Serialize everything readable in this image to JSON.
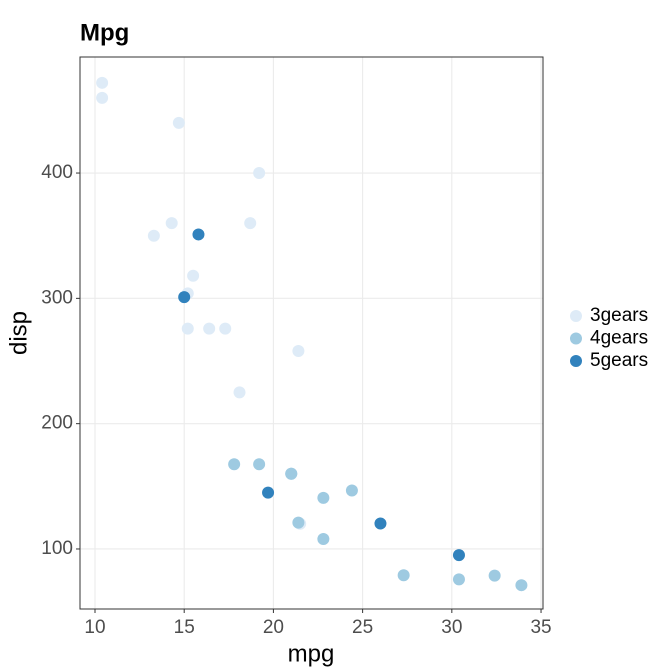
{
  "chart_data": {
    "type": "scatter",
    "title": "Mpg",
    "x_label": "mpg",
    "y_label": "disp",
    "series": [
      {
        "name": "3gears",
        "color": "#deebf7",
        "x": [
          21.4,
          18.7,
          18.1,
          14.3,
          16.4,
          17.3,
          15.2,
          10.4,
          10.4,
          14.7,
          21.5,
          15.5,
          15.2,
          13.3,
          19.2
        ],
        "values": [
          258,
          360,
          225,
          360,
          275.8,
          275.8,
          275.8,
          472,
          460,
          440,
          120.1,
          318,
          304,
          350,
          400
        ]
      },
      {
        "name": "4gears",
        "color": "#9ecae1",
        "x": [
          21.0,
          21.0,
          22.8,
          24.4,
          22.8,
          19.2,
          17.8,
          32.4,
          30.4,
          33.9,
          27.3,
          21.4
        ],
        "values": [
          160,
          160,
          108,
          146.7,
          140.8,
          167.6,
          167.6,
          78.7,
          75.7,
          71.1,
          79,
          121
        ]
      },
      {
        "name": "5gears",
        "color": "#3182bd",
        "x": [
          26.0,
          30.4,
          15.8,
          19.7,
          15.0
        ],
        "values": [
          120.3,
          95.1,
          351,
          145,
          301
        ]
      }
    ],
    "xlim": [
      9.16,
      35.11
    ],
    "ylim": [
      52.1,
      492.6
    ],
    "xticks": [
      10,
      15,
      20,
      25,
      30,
      35
    ],
    "yticks": [
      100,
      200,
      300,
      400
    ],
    "grid": true,
    "legend": "right"
  }
}
